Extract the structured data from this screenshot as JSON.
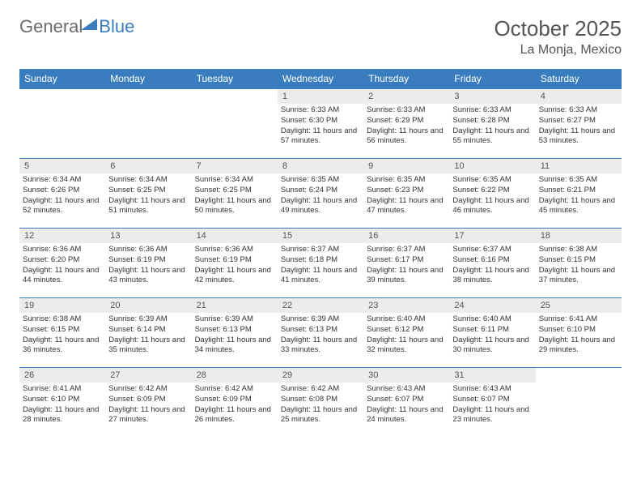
{
  "brand": {
    "part1": "General",
    "part2": "Blue"
  },
  "title": "October 2025",
  "location": "La Monja, Mexico",
  "colors": {
    "header_bg": "#3a7dbf",
    "header_text": "#ffffff",
    "daynum_bg": "#ececec",
    "text": "#333333",
    "rule": "#3a7dbf",
    "background": "#ffffff"
  },
  "weekdays": [
    "Sunday",
    "Monday",
    "Tuesday",
    "Wednesday",
    "Thursday",
    "Friday",
    "Saturday"
  ],
  "weeks": [
    [
      {
        "n": "",
        "l1": "",
        "l2": "",
        "l3": ""
      },
      {
        "n": "",
        "l1": "",
        "l2": "",
        "l3": ""
      },
      {
        "n": "",
        "l1": "",
        "l2": "",
        "l3": ""
      },
      {
        "n": "1",
        "l1": "Sunrise: 6:33 AM",
        "l2": "Sunset: 6:30 PM",
        "l3": "Daylight: 11 hours and 57 minutes."
      },
      {
        "n": "2",
        "l1": "Sunrise: 6:33 AM",
        "l2": "Sunset: 6:29 PM",
        "l3": "Daylight: 11 hours and 56 minutes."
      },
      {
        "n": "3",
        "l1": "Sunrise: 6:33 AM",
        "l2": "Sunset: 6:28 PM",
        "l3": "Daylight: 11 hours and 55 minutes."
      },
      {
        "n": "4",
        "l1": "Sunrise: 6:33 AM",
        "l2": "Sunset: 6:27 PM",
        "l3": "Daylight: 11 hours and 53 minutes."
      }
    ],
    [
      {
        "n": "5",
        "l1": "Sunrise: 6:34 AM",
        "l2": "Sunset: 6:26 PM",
        "l3": "Daylight: 11 hours and 52 minutes."
      },
      {
        "n": "6",
        "l1": "Sunrise: 6:34 AM",
        "l2": "Sunset: 6:25 PM",
        "l3": "Daylight: 11 hours and 51 minutes."
      },
      {
        "n": "7",
        "l1": "Sunrise: 6:34 AM",
        "l2": "Sunset: 6:25 PM",
        "l3": "Daylight: 11 hours and 50 minutes."
      },
      {
        "n": "8",
        "l1": "Sunrise: 6:35 AM",
        "l2": "Sunset: 6:24 PM",
        "l3": "Daylight: 11 hours and 49 minutes."
      },
      {
        "n": "9",
        "l1": "Sunrise: 6:35 AM",
        "l2": "Sunset: 6:23 PM",
        "l3": "Daylight: 11 hours and 47 minutes."
      },
      {
        "n": "10",
        "l1": "Sunrise: 6:35 AM",
        "l2": "Sunset: 6:22 PM",
        "l3": "Daylight: 11 hours and 46 minutes."
      },
      {
        "n": "11",
        "l1": "Sunrise: 6:35 AM",
        "l2": "Sunset: 6:21 PM",
        "l3": "Daylight: 11 hours and 45 minutes."
      }
    ],
    [
      {
        "n": "12",
        "l1": "Sunrise: 6:36 AM",
        "l2": "Sunset: 6:20 PM",
        "l3": "Daylight: 11 hours and 44 minutes."
      },
      {
        "n": "13",
        "l1": "Sunrise: 6:36 AM",
        "l2": "Sunset: 6:19 PM",
        "l3": "Daylight: 11 hours and 43 minutes."
      },
      {
        "n": "14",
        "l1": "Sunrise: 6:36 AM",
        "l2": "Sunset: 6:19 PM",
        "l3": "Daylight: 11 hours and 42 minutes."
      },
      {
        "n": "15",
        "l1": "Sunrise: 6:37 AM",
        "l2": "Sunset: 6:18 PM",
        "l3": "Daylight: 11 hours and 41 minutes."
      },
      {
        "n": "16",
        "l1": "Sunrise: 6:37 AM",
        "l2": "Sunset: 6:17 PM",
        "l3": "Daylight: 11 hours and 39 minutes."
      },
      {
        "n": "17",
        "l1": "Sunrise: 6:37 AM",
        "l2": "Sunset: 6:16 PM",
        "l3": "Daylight: 11 hours and 38 minutes."
      },
      {
        "n": "18",
        "l1": "Sunrise: 6:38 AM",
        "l2": "Sunset: 6:15 PM",
        "l3": "Daylight: 11 hours and 37 minutes."
      }
    ],
    [
      {
        "n": "19",
        "l1": "Sunrise: 6:38 AM",
        "l2": "Sunset: 6:15 PM",
        "l3": "Daylight: 11 hours and 36 minutes."
      },
      {
        "n": "20",
        "l1": "Sunrise: 6:39 AM",
        "l2": "Sunset: 6:14 PM",
        "l3": "Daylight: 11 hours and 35 minutes."
      },
      {
        "n": "21",
        "l1": "Sunrise: 6:39 AM",
        "l2": "Sunset: 6:13 PM",
        "l3": "Daylight: 11 hours and 34 minutes."
      },
      {
        "n": "22",
        "l1": "Sunrise: 6:39 AM",
        "l2": "Sunset: 6:13 PM",
        "l3": "Daylight: 11 hours and 33 minutes."
      },
      {
        "n": "23",
        "l1": "Sunrise: 6:40 AM",
        "l2": "Sunset: 6:12 PM",
        "l3": "Daylight: 11 hours and 32 minutes."
      },
      {
        "n": "24",
        "l1": "Sunrise: 6:40 AM",
        "l2": "Sunset: 6:11 PM",
        "l3": "Daylight: 11 hours and 30 minutes."
      },
      {
        "n": "25",
        "l1": "Sunrise: 6:41 AM",
        "l2": "Sunset: 6:10 PM",
        "l3": "Daylight: 11 hours and 29 minutes."
      }
    ],
    [
      {
        "n": "26",
        "l1": "Sunrise: 6:41 AM",
        "l2": "Sunset: 6:10 PM",
        "l3": "Daylight: 11 hours and 28 minutes."
      },
      {
        "n": "27",
        "l1": "Sunrise: 6:42 AM",
        "l2": "Sunset: 6:09 PM",
        "l3": "Daylight: 11 hours and 27 minutes."
      },
      {
        "n": "28",
        "l1": "Sunrise: 6:42 AM",
        "l2": "Sunset: 6:09 PM",
        "l3": "Daylight: 11 hours and 26 minutes."
      },
      {
        "n": "29",
        "l1": "Sunrise: 6:42 AM",
        "l2": "Sunset: 6:08 PM",
        "l3": "Daylight: 11 hours and 25 minutes."
      },
      {
        "n": "30",
        "l1": "Sunrise: 6:43 AM",
        "l2": "Sunset: 6:07 PM",
        "l3": "Daylight: 11 hours and 24 minutes."
      },
      {
        "n": "31",
        "l1": "Sunrise: 6:43 AM",
        "l2": "Sunset: 6:07 PM",
        "l3": "Daylight: 11 hours and 23 minutes."
      },
      {
        "n": "",
        "l1": "",
        "l2": "",
        "l3": ""
      }
    ]
  ]
}
